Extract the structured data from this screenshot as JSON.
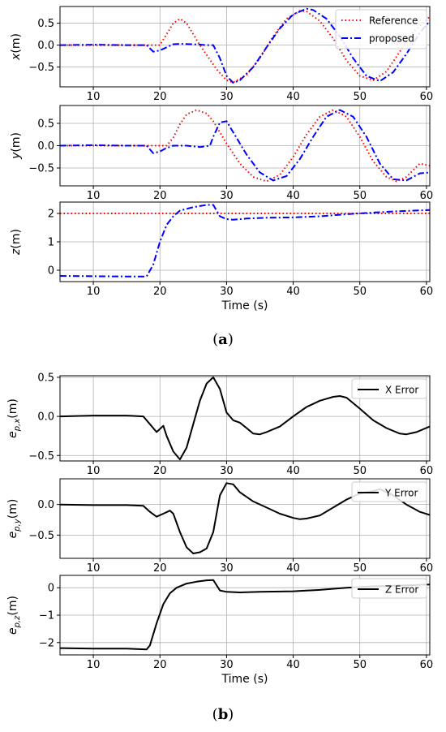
{
  "captions": {
    "a": "a",
    "b": "b"
  },
  "colors": {
    "reference": "#ff0000",
    "proposed": "#0000ff",
    "error": "#000000",
    "grid": "#b0b0b0"
  },
  "chart_data": [
    {
      "type": "line",
      "ylabel": "x(m)",
      "xlim": [
        5,
        60.5
      ],
      "ylim": [
        -0.95,
        0.88
      ],
      "xticks": [
        10,
        20,
        30,
        40,
        50,
        60
      ],
      "yticks": [
        -0.5,
        0.0,
        0.5
      ],
      "ytick_labels": [
        "−0.5",
        "0.0",
        "0.5"
      ],
      "grid": true,
      "legend": "top-right",
      "series": [
        {
          "name": "Reference",
          "style": "dotted",
          "color": "#ff0000",
          "points": [
            [
              5,
              0
            ],
            [
              20,
              0
            ],
            [
              21,
              0.25
            ],
            [
              22,
              0.5
            ],
            [
              23,
              0.6
            ],
            [
              24,
              0.5
            ],
            [
              25,
              0.25
            ],
            [
              26,
              0
            ],
            [
              28.5,
              -0.55
            ],
            [
              30,
              -0.8
            ],
            [
              31,
              -0.85
            ],
            [
              33,
              -0.68
            ],
            [
              35,
              -0.3
            ],
            [
              37,
              0.2
            ],
            [
              39,
              0.6
            ],
            [
              41,
              0.78
            ],
            [
              42,
              0.77
            ],
            [
              44,
              0.55
            ],
            [
              46,
              0.15
            ],
            [
              48,
              -0.35
            ],
            [
              50,
              -0.7
            ],
            [
              52,
              -0.8
            ],
            [
              54,
              -0.6
            ],
            [
              56,
              -0.15
            ],
            [
              58,
              0.3
            ],
            [
              60.5,
              0.65
            ]
          ]
        },
        {
          "name": "proposed",
          "style": "dashdot",
          "color": "#0000ff",
          "points": [
            [
              5,
              0
            ],
            [
              10,
              0.01
            ],
            [
              15,
              0
            ],
            [
              18,
              0
            ],
            [
              19,
              -0.15
            ],
            [
              20,
              -0.12
            ],
            [
              21,
              -0.05
            ],
            [
              22,
              0.02
            ],
            [
              23,
              0.03
            ],
            [
              25,
              0.02
            ],
            [
              27,
              0
            ],
            [
              28,
              0
            ],
            [
              29,
              -0.3
            ],
            [
              30,
              -0.7
            ],
            [
              31,
              -0.86
            ],
            [
              32,
              -0.8
            ],
            [
              34,
              -0.5
            ],
            [
              36,
              -0.05
            ],
            [
              38,
              0.38
            ],
            [
              40,
              0.7
            ],
            [
              42,
              0.83
            ],
            [
              43,
              0.8
            ],
            [
              45,
              0.6
            ],
            [
              47,
              0.2
            ],
            [
              49,
              -0.3
            ],
            [
              51,
              -0.7
            ],
            [
              53,
              -0.82
            ],
            [
              55,
              -0.62
            ],
            [
              57,
              -0.2
            ],
            [
              59,
              0.28
            ],
            [
              60.5,
              0.55
            ]
          ]
        }
      ]
    },
    {
      "type": "line",
      "ylabel": "y(m)",
      "xlim": [
        5,
        60.5
      ],
      "ylim": [
        -0.9,
        0.9
      ],
      "xticks": [
        10,
        20,
        30,
        40,
        50,
        60
      ],
      "yticks": [
        -0.5,
        0.0,
        0.5
      ],
      "ytick_labels": [
        "−0.5",
        "0.0",
        "0.5"
      ],
      "grid": true,
      "series": [
        {
          "name": "Reference",
          "style": "dotted",
          "color": "#ff0000",
          "points": [
            [
              5,
              0
            ],
            [
              21,
              0
            ],
            [
              22,
              0.18
            ],
            [
              23,
              0.48
            ],
            [
              24,
              0.7
            ],
            [
              25.5,
              0.8
            ],
            [
              27,
              0.72
            ],
            [
              28,
              0.55
            ],
            [
              30,
              0.05
            ],
            [
              32,
              -0.4
            ],
            [
              34,
              -0.7
            ],
            [
              36,
              -0.8
            ],
            [
              38,
              -0.65
            ],
            [
              40,
              -0.25
            ],
            [
              42,
              0.25
            ],
            [
              44,
              0.65
            ],
            [
              46,
              0.8
            ],
            [
              48,
              0.65
            ],
            [
              50,
              0.2
            ],
            [
              52,
              -0.35
            ],
            [
              54,
              -0.7
            ],
            [
              55.5,
              -0.8
            ],
            [
              57,
              -0.7
            ],
            [
              59,
              -0.4
            ],
            [
              60.5,
              -0.45
            ]
          ]
        },
        {
          "name": "proposed",
          "style": "dashdot",
          "color": "#0000ff",
          "points": [
            [
              5,
              0
            ],
            [
              10,
              0.01
            ],
            [
              15,
              0
            ],
            [
              18,
              0
            ],
            [
              19,
              -0.17
            ],
            [
              20,
              -0.13
            ],
            [
              21,
              -0.05
            ],
            [
              22,
              0
            ],
            [
              24,
              0
            ],
            [
              26,
              -0.03
            ],
            [
              27.5,
              0
            ],
            [
              28,
              0.2
            ],
            [
              29,
              0.52
            ],
            [
              30,
              0.55
            ],
            [
              31,
              0.3
            ],
            [
              33,
              -0.2
            ],
            [
              35,
              -0.6
            ],
            [
              37,
              -0.78
            ],
            [
              39,
              -0.68
            ],
            [
              41,
              -0.3
            ],
            [
              43,
              0.2
            ],
            [
              45,
              0.65
            ],
            [
              47,
              0.8
            ],
            [
              49,
              0.65
            ],
            [
              51,
              0.2
            ],
            [
              53,
              -0.4
            ],
            [
              55,
              -0.75
            ],
            [
              57,
              -0.78
            ],
            [
              59,
              -0.62
            ],
            [
              60.5,
              -0.6
            ]
          ]
        }
      ]
    },
    {
      "type": "line",
      "ylabel": "z(m)",
      "xlabel": "Time (s)",
      "xlim": [
        5,
        60.5
      ],
      "ylim": [
        -0.4,
        2.4
      ],
      "xticks": [
        10,
        20,
        30,
        40,
        50,
        60
      ],
      "yticks": [
        0,
        1,
        2
      ],
      "ytick_labels": [
        "0",
        "1",
        "2"
      ],
      "grid": true,
      "series": [
        {
          "name": "Reference",
          "style": "dotted",
          "color": "#ff0000",
          "points": [
            [
              5,
              2
            ],
            [
              60.5,
              2
            ]
          ]
        },
        {
          "name": "proposed",
          "style": "dashdot",
          "color": "#0000ff",
          "points": [
            [
              5,
              -0.2
            ],
            [
              10,
              -0.21
            ],
            [
              15,
              -0.22
            ],
            [
              18,
              -0.22
            ],
            [
              19,
              0.2
            ],
            [
              20,
              1.0
            ],
            [
              21,
              1.6
            ],
            [
              22,
              1.9
            ],
            [
              23,
              2.1
            ],
            [
              25,
              2.22
            ],
            [
              27,
              2.3
            ],
            [
              28,
              2.3
            ],
            [
              29,
              1.9
            ],
            [
              30,
              1.8
            ],
            [
              31,
              1.78
            ],
            [
              33,
              1.82
            ],
            [
              36,
              1.85
            ],
            [
              40,
              1.86
            ],
            [
              44,
              1.9
            ],
            [
              48,
              1.97
            ],
            [
              52,
              2.03
            ],
            [
              56,
              2.08
            ],
            [
              60.5,
              2.12
            ]
          ]
        }
      ]
    },
    {
      "type": "line",
      "ylabel": "e_{p,x}(m)",
      "xlim": [
        5,
        60.5
      ],
      "ylim": [
        -0.57,
        0.52
      ],
      "xticks": [
        10,
        20,
        30,
        40,
        50,
        60
      ],
      "yticks": [
        -0.5,
        0.0,
        0.5
      ],
      "ytick_labels": [
        "−0.5",
        "0.0",
        "0.5"
      ],
      "grid": true,
      "legend": "top-right",
      "series": [
        {
          "name": "X Error",
          "style": "solid",
          "color": "#000000",
          "points": [
            [
              5,
              0
            ],
            [
              10,
              0.01
            ],
            [
              15,
              0.01
            ],
            [
              17.5,
              0
            ],
            [
              18.5,
              -0.1
            ],
            [
              19.5,
              -0.2
            ],
            [
              20.5,
              -0.12
            ],
            [
              21,
              -0.25
            ],
            [
              22,
              -0.45
            ],
            [
              23,
              -0.55
            ],
            [
              24,
              -0.4
            ],
            [
              25,
              -0.1
            ],
            [
              26,
              0.2
            ],
            [
              27,
              0.42
            ],
            [
              28,
              0.5
            ],
            [
              29,
              0.35
            ],
            [
              30,
              0.05
            ],
            [
              31,
              -0.05
            ],
            [
              32,
              -0.08
            ],
            [
              33,
              -0.15
            ],
            [
              34,
              -0.22
            ],
            [
              35,
              -0.23
            ],
            [
              36,
              -0.2
            ],
            [
              38,
              -0.13
            ],
            [
              40,
              0
            ],
            [
              42,
              0.12
            ],
            [
              44,
              0.2
            ],
            [
              46,
              0.25
            ],
            [
              47,
              0.26
            ],
            [
              48,
              0.24
            ],
            [
              50,
              0.1
            ],
            [
              52,
              -0.05
            ],
            [
              54,
              -0.15
            ],
            [
              56,
              -0.22
            ],
            [
              57,
              -0.23
            ],
            [
              58.5,
              -0.2
            ],
            [
              60.5,
              -0.13
            ]
          ]
        }
      ]
    },
    {
      "type": "line",
      "ylabel": "e_{p,y}(m)",
      "xlim": [
        5,
        60.5
      ],
      "ylim": [
        -0.88,
        0.42
      ],
      "xticks": [
        10,
        20,
        30,
        40,
        50,
        60
      ],
      "yticks": [
        -0.5,
        0.0
      ],
      "ytick_labels": [
        "−0.5",
        "0.0"
      ],
      "grid": true,
      "legend": "top-right",
      "series": [
        {
          "name": "Y Error",
          "style": "solid",
          "color": "#000000",
          "points": [
            [
              5,
              0
            ],
            [
              10,
              -0.01
            ],
            [
              15,
              -0.01
            ],
            [
              17.5,
              -0.02
            ],
            [
              18.5,
              -0.12
            ],
            [
              19.5,
              -0.2
            ],
            [
              20.5,
              -0.15
            ],
            [
              21.5,
              -0.1
            ],
            [
              22,
              -0.15
            ],
            [
              23,
              -0.45
            ],
            [
              24,
              -0.7
            ],
            [
              25,
              -0.8
            ],
            [
              26,
              -0.78
            ],
            [
              27,
              -0.72
            ],
            [
              28,
              -0.45
            ],
            [
              29,
              0.15
            ],
            [
              30,
              0.35
            ],
            [
              31,
              0.33
            ],
            [
              32,
              0.2
            ],
            [
              34,
              0.05
            ],
            [
              36,
              -0.05
            ],
            [
              38,
              -0.15
            ],
            [
              40,
              -0.22
            ],
            [
              41,
              -0.24
            ],
            [
              42,
              -0.23
            ],
            [
              44,
              -0.18
            ],
            [
              46,
              -0.05
            ],
            [
              48,
              0.08
            ],
            [
              50,
              0.18
            ],
            [
              52,
              0.22
            ],
            [
              53,
              0.25
            ],
            [
              55,
              0.15
            ],
            [
              57,
              0
            ],
            [
              59,
              -0.12
            ],
            [
              60.5,
              -0.17
            ]
          ]
        }
      ]
    },
    {
      "type": "line",
      "ylabel": "e_{p,z}(m)",
      "xlabel": "Time (s)",
      "xlim": [
        5,
        60.5
      ],
      "ylim": [
        -2.45,
        0.45
      ],
      "xticks": [
        10,
        20,
        30,
        40,
        50,
        60
      ],
      "yticks": [
        -2,
        -1,
        0
      ],
      "ytick_labels": [
        "−2",
        "−1",
        "0"
      ],
      "grid": true,
      "legend": "top-right",
      "series": [
        {
          "name": "Z Error",
          "style": "solid",
          "color": "#000000",
          "points": [
            [
              5,
              -2.2
            ],
            [
              10,
              -2.22
            ],
            [
              15,
              -2.22
            ],
            [
              18,
              -2.25
            ],
            [
              18.5,
              -2.1
            ],
            [
              19.5,
              -1.3
            ],
            [
              20.5,
              -0.6
            ],
            [
              21.5,
              -0.2
            ],
            [
              22.5,
              0
            ],
            [
              24,
              0.15
            ],
            [
              25.5,
              0.22
            ],
            [
              27,
              0.27
            ],
            [
              28,
              0.28
            ],
            [
              29,
              -0.1
            ],
            [
              30,
              -0.15
            ],
            [
              32,
              -0.17
            ],
            [
              35,
              -0.15
            ],
            [
              40,
              -0.13
            ],
            [
              44,
              -0.08
            ],
            [
              48,
              0
            ],
            [
              52,
              0.05
            ],
            [
              56,
              0.08
            ],
            [
              60.5,
              0.12
            ]
          ]
        }
      ]
    }
  ]
}
